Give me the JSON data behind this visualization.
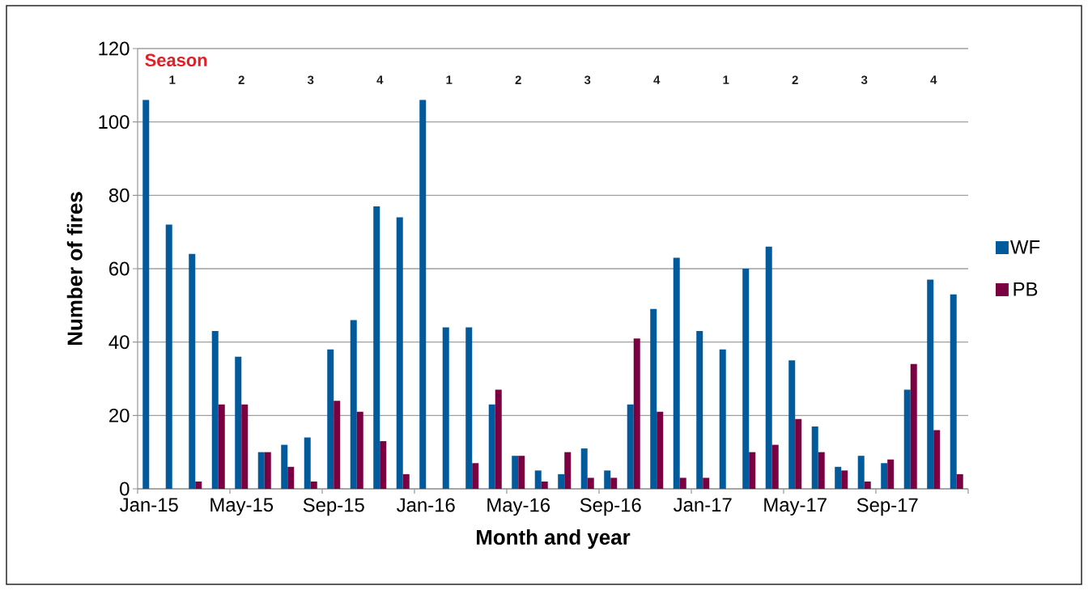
{
  "chart_data": {
    "type": "bar",
    "xlabel": "Month and year",
    "ylabel": "Number of fires",
    "categories": [
      "Jan-15",
      null,
      null,
      null,
      "May-15",
      null,
      null,
      null,
      "Sep-15",
      null,
      null,
      null,
      "Jan-16",
      null,
      null,
      null,
      "May-16",
      null,
      null,
      null,
      "Sep-16",
      null,
      null,
      null,
      "Jan-17",
      null,
      null,
      null,
      "May-17",
      null,
      null,
      null,
      "Sep-17",
      null,
      null,
      null
    ],
    "series": [
      {
        "name": "WF",
        "color": "#005a9c",
        "values": [
          106,
          72,
          64,
          43,
          36,
          10,
          12,
          14,
          38,
          46,
          77,
          74,
          106,
          44,
          44,
          23,
          9,
          5,
          4,
          11,
          5,
          23,
          49,
          63,
          43,
          38,
          60,
          66,
          35,
          17,
          6,
          9,
          7,
          27,
          57,
          53
        ]
      },
      {
        "name": "PB",
        "color": "#7b0041",
        "values": [
          null,
          null,
          2,
          23,
          23,
          10,
          6,
          2,
          24,
          21,
          13,
          4,
          null,
          null,
          7,
          27,
          9,
          2,
          10,
          3,
          3,
          41,
          21,
          3,
          3,
          null,
          10,
          12,
          19,
          10,
          5,
          2,
          8,
          34,
          16,
          4
        ]
      }
    ],
    "ylim": [
      0,
      120
    ],
    "yticks": [
      0,
      20,
      40,
      60,
      80,
      100,
      120
    ],
    "grid": "y",
    "legend": "right",
    "annotations": [
      "Season",
      "1",
      "2",
      "3",
      "4",
      "1",
      "2",
      "3",
      "4",
      "1",
      "2",
      "3",
      "4"
    ]
  }
}
